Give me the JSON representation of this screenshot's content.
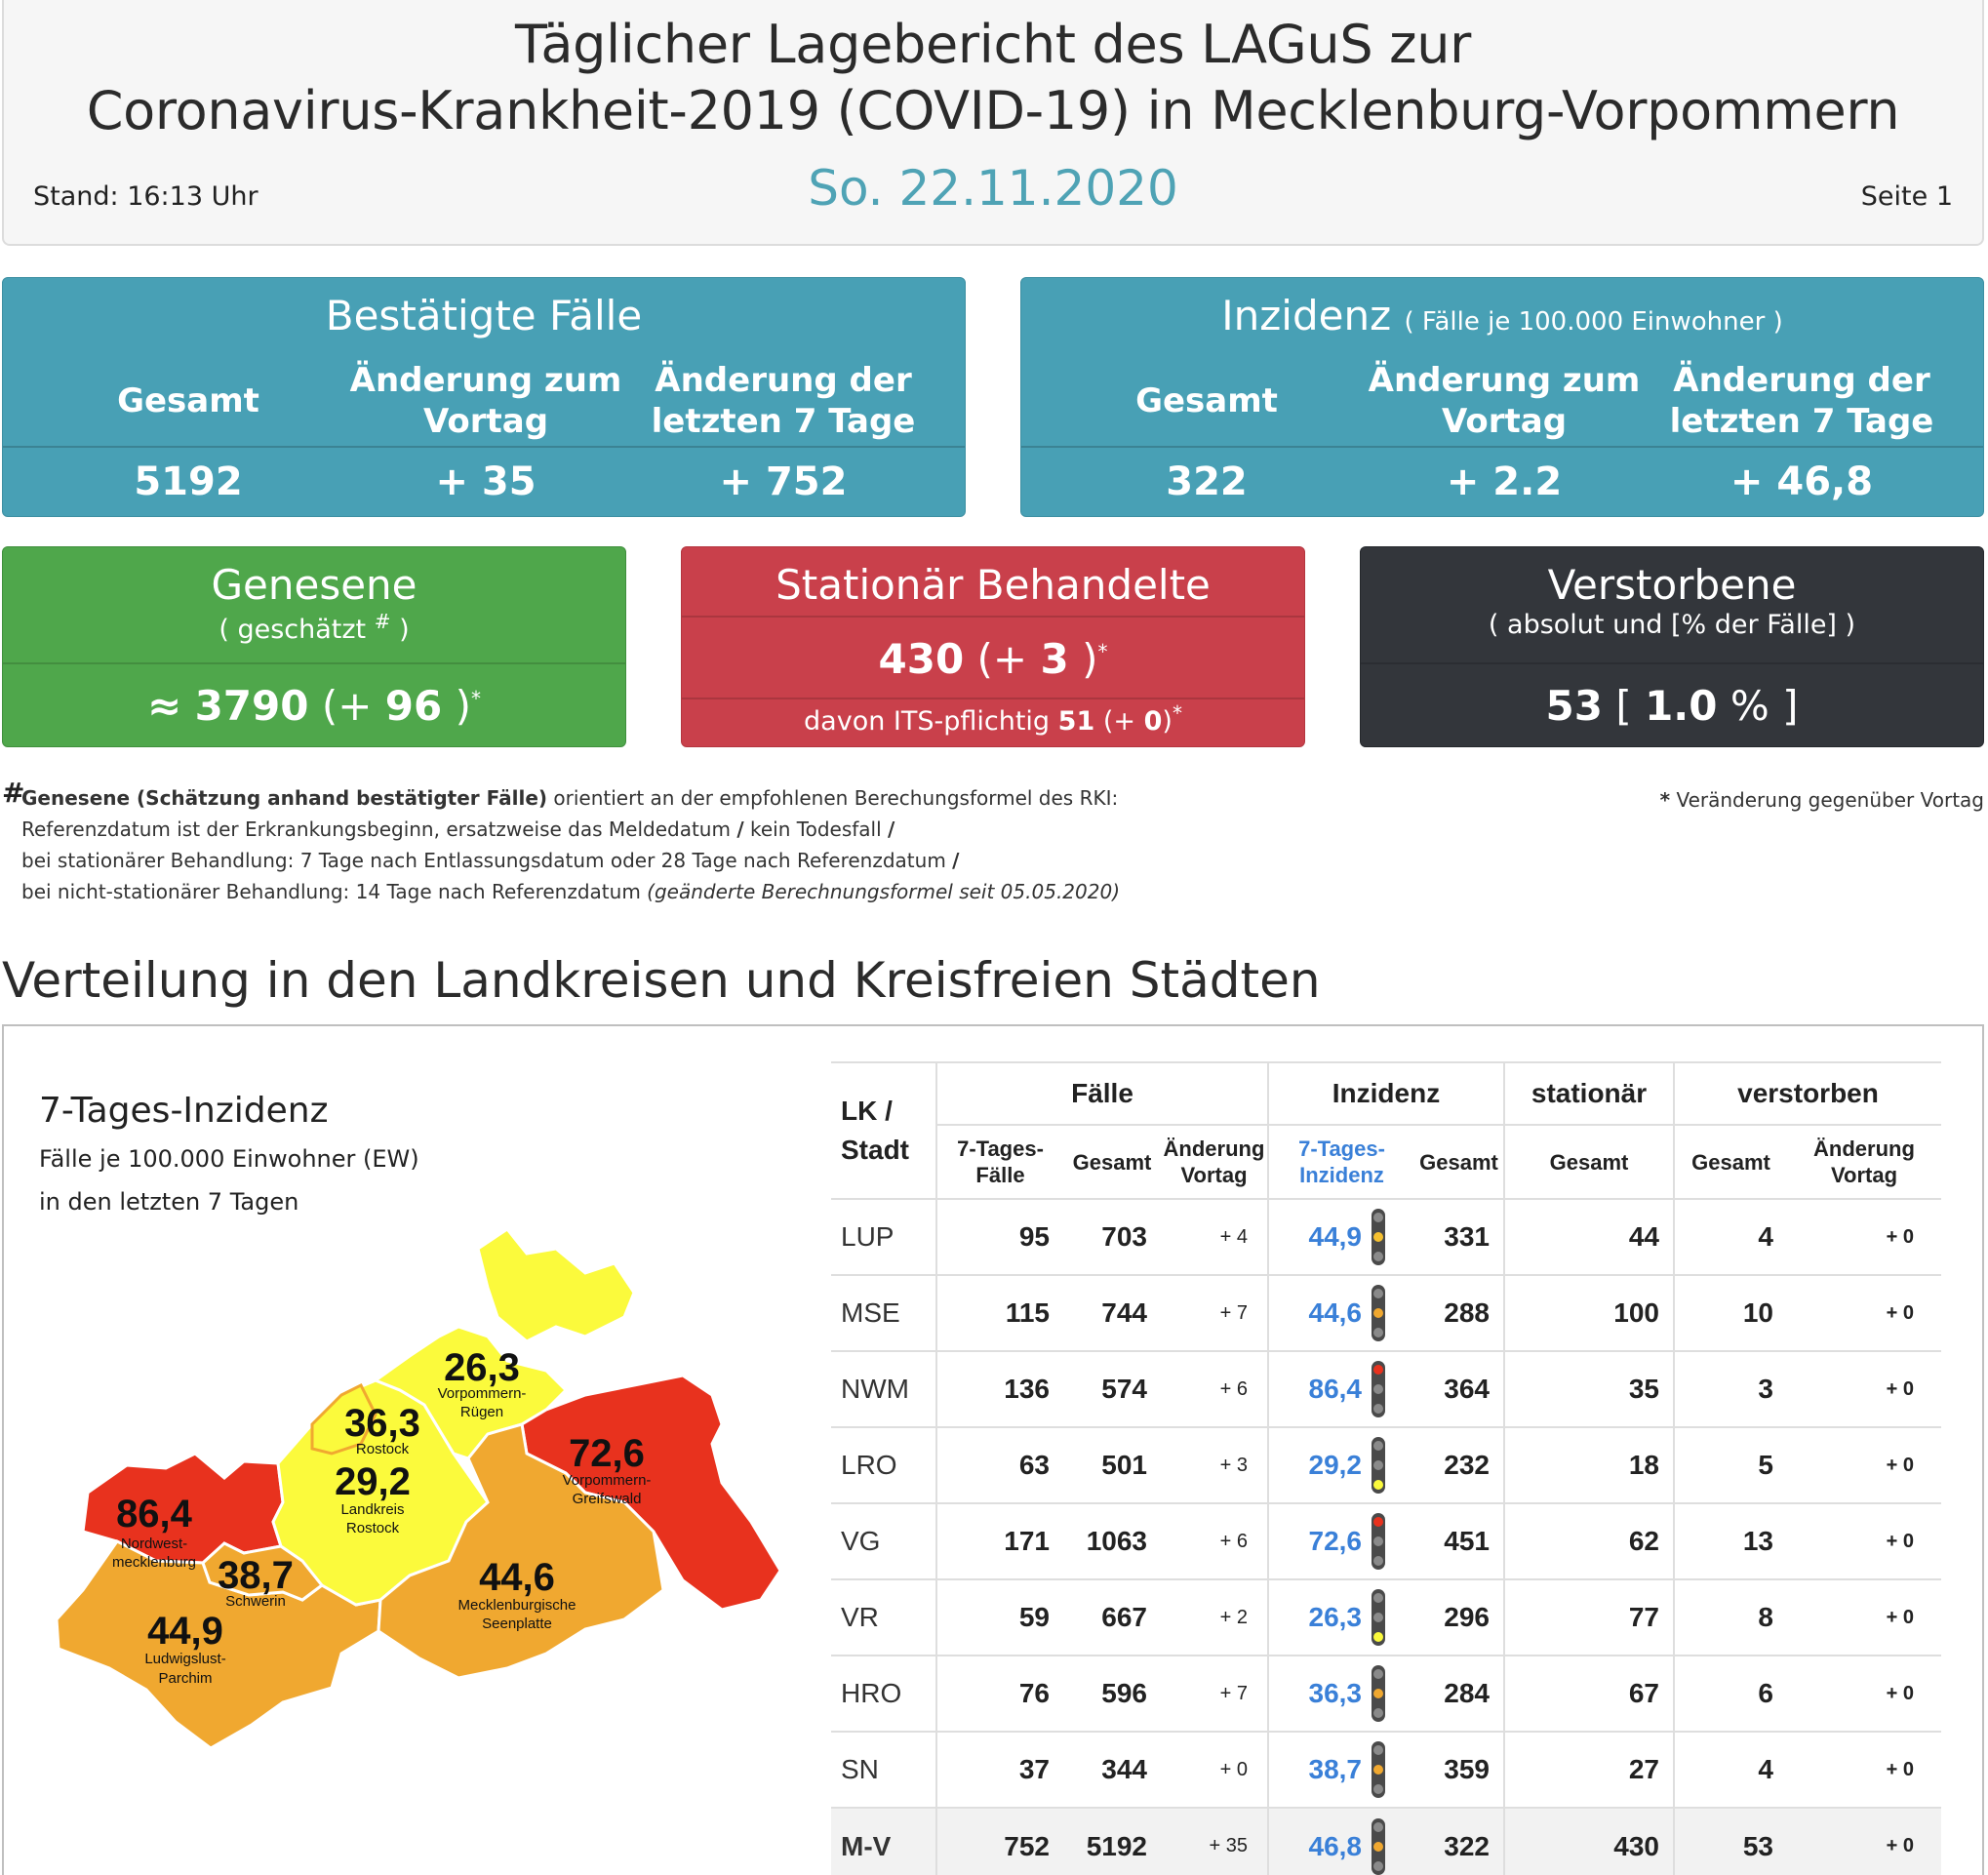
{
  "header": {
    "title_line1": "Täglicher Lagebericht des LAGuS zur",
    "title_line2": "Coronavirus-Krankheit-2019 (COVID-19) in Mecklenburg-Vorpommern",
    "date": "So. 22.11.2020",
    "stand": "Stand: 16:13 Uhr",
    "page": "Seite 1"
  },
  "confirmed": {
    "title": "Bestätigte Fälle",
    "col_total": "Gesamt",
    "col_change_day_l1": "Änderung zum",
    "col_change_day_l2": "Vortag",
    "col_change_week_l1": "Änderung der",
    "col_change_week_l2": "letzten 7 Tage",
    "total": "5192",
    "change_day": "+ 35",
    "change_week": "+ 752"
  },
  "incidence": {
    "title": "Inzidenz",
    "title_note": "( Fälle je 100.000 Einwohner )",
    "col_total": "Gesamt",
    "col_change_day_l1": "Änderung zum",
    "col_change_day_l2": "Vortag",
    "col_change_week_l1": "Änderung der",
    "col_change_week_l2": "letzten 7 Tage",
    "total": "322",
    "change_day": "+ 2.2",
    "change_week": "+ 46,8"
  },
  "recovered": {
    "title": "Genesene",
    "subtitle_pre": "( geschätzt",
    "subtitle_mark": "#",
    "subtitle_post": ")",
    "approx": "≈",
    "value": "3790",
    "change_pre": "(+",
    "change": "96",
    "change_post": ")",
    "star": "*"
  },
  "hospital": {
    "title": "Stationär Behandelte",
    "value": "430",
    "change_pre": "(+",
    "change": "3",
    "change_post": ")",
    "star": "*",
    "its_label": "davon ITS-pflichtig",
    "its_value": "51",
    "its_change_pre": "(+",
    "its_change": "0",
    "its_change_post": ")"
  },
  "deceased": {
    "title": "Verstorbene",
    "subtitle": "( absolut und [% der Fälle] )",
    "value": "53",
    "bracket_open": "[",
    "percent": "1.0",
    "percent_sign": "%",
    "bracket_close": "]"
  },
  "footnotes": {
    "hash": "#",
    "line1_bold": "Genesene (Schätzung anhand bestätigter Fälle)",
    "line1_rest": "orientiert an der empfohlenen Berechungsformel des RKI:",
    "line2": "Referenzdatum ist der Erkrankungsbeginn, ersatzweise das Meldedatum",
    "line2_mid": "kein Todesfall",
    "slash": "/",
    "line3": "bei stationärer Behandlung: 7 Tage nach Entlassungsdatum oder 28 Tage nach Referenzdatum",
    "line4": "bei nicht-stationärer Behandlung: 14 Tage nach Referenzdatum",
    "line4_italic": "(geänderte Berechnungsformel seit 05.05.2020)",
    "star_note_mark": "*",
    "star_note": "Veränderung gegenüber Vortag"
  },
  "section": {
    "title": "Verteilung in den Landkreisen und Kreisfreien Städten"
  },
  "map": {
    "title": "7-Tages-Inzidenz",
    "sub1": "Fälle je 100.000 Einwohner (EW)",
    "sub2": "in den letzten 7 Tagen",
    "regions": [
      {
        "value": "86,4",
        "name_l1": "Nordwest-",
        "name_l2": "mecklenburg",
        "color": "#e8321e"
      },
      {
        "value": "38,7",
        "name_l1": "Schwerin",
        "name_l2": "",
        "color": "#f0a830"
      },
      {
        "value": "44,9",
        "name_l1": "Ludwigslust-",
        "name_l2": "Parchim",
        "color": "#f0a830"
      },
      {
        "value": "36,3",
        "name_l1": "Rostock",
        "name_l2": "",
        "color": "#fbfa3c"
      },
      {
        "value": "29,2",
        "name_l1": "Landkreis",
        "name_l2": "Rostock",
        "color": "#fbfa3c"
      },
      {
        "value": "26,3",
        "name_l1": "Vorpommern-",
        "name_l2": "Rügen",
        "color": "#fbfa3c"
      },
      {
        "value": "72,6",
        "name_l1": "Vorpommern-",
        "name_l2": "Greifswald",
        "color": "#e8321e"
      },
      {
        "value": "44,6",
        "name_l1": "Mecklenburgische",
        "name_l2": "Seenplatte",
        "color": "#f0a830"
      }
    ]
  },
  "table": {
    "head_lk_l1": "LK /",
    "head_lk_l2": "Stadt",
    "head_faelle": "Fälle",
    "head_inzidenz": "Inzidenz",
    "head_stationaer": "stationär",
    "head_verstorben": "verstorben",
    "sub_7tf_l1": "7-Tages-",
    "sub_7tf_l2": "Fälle",
    "sub_gesamt": "Gesamt",
    "sub_aend_l1": "Änderung",
    "sub_aend_l2": "Vortag",
    "sub_7ti_l1": "7-Tages-",
    "sub_7ti_l2": "Inzidenz",
    "rows": [
      {
        "name": "LUP",
        "f7": "95",
        "fg": "703",
        "fa": "+ 4",
        "i7": "44,9",
        "light": "yellow-orange",
        "ig": "331",
        "st": "44",
        "vg": "4",
        "va": "+ 0"
      },
      {
        "name": "MSE",
        "f7": "115",
        "fg": "744",
        "fa": "+ 7",
        "i7": "44,6",
        "light": "orange",
        "ig": "288",
        "st": "100",
        "vg": "10",
        "va": "+ 0"
      },
      {
        "name": "NWM",
        "f7": "136",
        "fg": "574",
        "fa": "+ 6",
        "i7": "86,4",
        "light": "red",
        "ig": "364",
        "st": "35",
        "vg": "3",
        "va": "+ 0"
      },
      {
        "name": "LRO",
        "f7": "63",
        "fg": "501",
        "fa": "+ 3",
        "i7": "29,2",
        "light": "yellow",
        "ig": "232",
        "st": "18",
        "vg": "5",
        "va": "+ 0"
      },
      {
        "name": "VG",
        "f7": "171",
        "fg": "1063",
        "fa": "+ 6",
        "i7": "72,6",
        "light": "red",
        "ig": "451",
        "st": "62",
        "vg": "13",
        "va": "+ 0"
      },
      {
        "name": "VR",
        "f7": "59",
        "fg": "667",
        "fa": "+ 2",
        "i7": "26,3",
        "light": "yellow",
        "ig": "296",
        "st": "77",
        "vg": "8",
        "va": "+ 0"
      },
      {
        "name": "HRO",
        "f7": "76",
        "fg": "596",
        "fa": "+ 7",
        "i7": "36,3",
        "light": "orange",
        "ig": "284",
        "st": "67",
        "vg": "6",
        "va": "+ 0"
      },
      {
        "name": "SN",
        "f7": "37",
        "fg": "344",
        "fa": "+ 0",
        "i7": "38,7",
        "light": "orange",
        "ig": "359",
        "st": "27",
        "vg": "4",
        "va": "+ 0"
      }
    ],
    "total": {
      "name": "M-V",
      "f7": "752",
      "fg": "5192",
      "fa": "+ 35",
      "i7": "46,8",
      "light": "orange",
      "ig": "322",
      "st": "430",
      "vg": "53",
      "va": "+ 0"
    }
  },
  "colors": {
    "teal": "#48a0b5",
    "green": "#4fa74b",
    "red": "#c9404b",
    "dark": "#33363b",
    "incidence_blue": "#3a80d8",
    "date_teal": "#4fa3b5"
  }
}
